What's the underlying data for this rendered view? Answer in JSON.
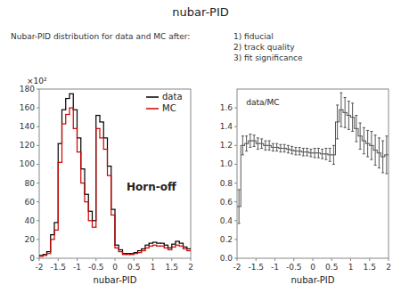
{
  "chart_data": [
    {
      "type": "histogram",
      "title": "nubar-PID",
      "subtitle": [
        "Nubar-PID distribution for data and MC after:",
        "1) fiducial\n2) track quality\n3) fit significance"
      ],
      "xlabel": "nubar-PID",
      "xlim": [
        -2,
        2
      ],
      "ylim": [
        0,
        180
      ],
      "xticks": [
        -2,
        -1.5,
        -1,
        -0.5,
        0,
        0.5,
        1,
        1.5,
        2
      ],
      "yticks": [
        0,
        20,
        40,
        60,
        80,
        100,
        120,
        140,
        160,
        180
      ],
      "grid": false,
      "legend": "upper right",
      "annotations": [
        "×10²",
        "Horn-off"
      ],
      "bins": [
        -2.0,
        -1.9,
        -1.8,
        -1.7,
        -1.6,
        -1.5,
        -1.4,
        -1.3,
        -1.2,
        -1.1,
        -1.0,
        -0.9,
        -0.8,
        -0.7,
        -0.6,
        -0.5,
        -0.4,
        -0.3,
        -0.2,
        -0.1,
        0.0,
        0.1,
        0.2,
        0.3,
        0.4,
        0.5,
        0.6,
        0.7,
        0.8,
        0.9,
        1.0,
        1.1,
        1.2,
        1.3,
        1.4,
        1.5,
        1.6,
        1.7,
        1.8,
        1.9,
        2.0
      ],
      "series": [
        {
          "name": "data",
          "color": "#000000",
          "values": [
            3,
            4,
            7,
            25,
            38,
            122,
            158,
            170,
            175,
            158,
            128,
            95,
            68,
            50,
            40,
            152,
            145,
            128,
            98,
            52,
            14,
            9,
            5,
            5,
            5,
            6,
            8,
            10,
            14,
            16,
            17,
            16,
            16,
            14,
            11,
            15,
            18,
            16,
            12,
            10
          ]
        },
        {
          "name": "MC",
          "color": "#cc0000",
          "values": [
            2,
            3,
            5,
            20,
            30,
            102,
            143,
            153,
            160,
            138,
            113,
            80,
            60,
            40,
            33,
            138,
            128,
            116,
            88,
            46,
            11,
            7,
            4,
            4,
            4,
            5,
            6,
            8,
            11,
            13,
            14,
            13,
            13,
            11,
            9,
            12,
            14,
            13,
            10,
            8
          ]
        }
      ]
    },
    {
      "type": "histogram",
      "xlabel": "nubar-PID",
      "xlim": [
        -2,
        2
      ],
      "ylim": [
        0,
        1.8
      ],
      "xticks": [
        -2,
        -1.5,
        -1,
        -0.5,
        0,
        0.5,
        1,
        1.5,
        2
      ],
      "yticks": [
        {
          "value": 0,
          "label": "0.0"
        },
        0.2,
        0.4,
        0.6,
        0.8,
        {
          "value": 1.0,
          "label": "1.0"
        },
        1.2,
        1.4,
        1.6
      ],
      "grid": false,
      "annotations": [
        "data/MC"
      ],
      "color": "#555555",
      "bins": [
        -2.0,
        -1.9,
        -1.8,
        -1.7,
        -1.6,
        -1.5,
        -1.4,
        -1.3,
        -1.2,
        -1.1,
        -1.0,
        -0.9,
        -0.8,
        -0.7,
        -0.6,
        -0.5,
        -0.4,
        -0.3,
        -0.2,
        -0.1,
        0.0,
        0.1,
        0.2,
        0.3,
        0.4,
        0.5,
        0.6,
        0.7,
        0.8,
        0.9,
        1.0,
        1.1,
        1.2,
        1.3,
        1.4,
        1.5,
        1.6,
        1.7,
        1.8,
        1.9,
        2.0
      ],
      "values": [
        0.55,
        1.2,
        1.22,
        1.25,
        1.25,
        1.22,
        1.22,
        1.2,
        1.2,
        1.18,
        1.18,
        1.17,
        1.17,
        1.16,
        1.15,
        1.14,
        1.14,
        1.13,
        1.13,
        1.12,
        1.12,
        1.12,
        1.11,
        1.11,
        1.1,
        1.1,
        1.45,
        1.58,
        1.55,
        1.52,
        1.5,
        1.38,
        1.3,
        1.25,
        1.22,
        1.2,
        1.15,
        1.12,
        1.08,
        1.1
      ],
      "errors": [
        0.18,
        0.1,
        0.08,
        0.07,
        0.06,
        0.06,
        0.05,
        0.05,
        0.05,
        0.04,
        0.04,
        0.04,
        0.04,
        0.04,
        0.04,
        0.04,
        0.04,
        0.04,
        0.04,
        0.04,
        0.05,
        0.05,
        0.05,
        0.06,
        0.07,
        0.1,
        0.18,
        0.18,
        0.16,
        0.15,
        0.15,
        0.14,
        0.14,
        0.14,
        0.14,
        0.15,
        0.16,
        0.16,
        0.17,
        0.2
      ]
    }
  ]
}
